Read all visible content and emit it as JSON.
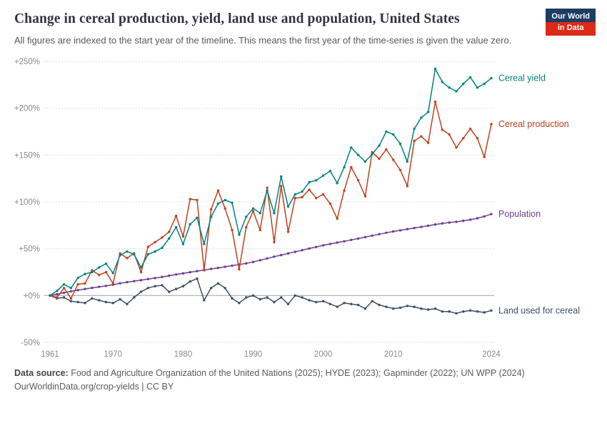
{
  "header": {
    "title": "Change in cereal production, yield, land use and population, United States",
    "subtitle": "All figures are indexed to the start year of the timeline. This means the first year of the time-series is given the value zero.",
    "logo_line1": "Our World",
    "logo_line2": "in Data",
    "logo_colors": {
      "background": "#1d3d63",
      "accent": "#dc2a17"
    }
  },
  "chart_data": {
    "type": "line",
    "title": "Change in cereal production, yield, land use and population, United States",
    "xlabel": "",
    "ylabel": "",
    "xlim": [
      1961,
      2024
    ],
    "ylim": [
      -50,
      250
    ],
    "grid": true,
    "legend_position": "right-end-labels",
    "yticks": [
      -50,
      0,
      50,
      100,
      150,
      200,
      250
    ],
    "ytick_labels": [
      "-50%",
      "+0%",
      "+50%",
      "+100%",
      "+150%",
      "+200%",
      "+250%"
    ],
    "xticks": [
      1961,
      1970,
      1980,
      1990,
      2000,
      2010,
      2024
    ],
    "x": [
      1961,
      1962,
      1963,
      1964,
      1965,
      1966,
      1967,
      1968,
      1969,
      1970,
      1971,
      1972,
      1973,
      1974,
      1975,
      1976,
      1977,
      1978,
      1979,
      1980,
      1981,
      1982,
      1983,
      1984,
      1985,
      1986,
      1987,
      1988,
      1989,
      1990,
      1991,
      1992,
      1993,
      1994,
      1995,
      1996,
      1997,
      1998,
      1999,
      2000,
      2001,
      2002,
      2003,
      2004,
      2005,
      2006,
      2007,
      2008,
      2009,
      2010,
      2011,
      2012,
      2013,
      2014,
      2015,
      2016,
      2017,
      2018,
      2019,
      2020,
      2021,
      2022,
      2023,
      2024
    ],
    "series": [
      {
        "name": "Cereal yield",
        "color": "#00847e",
        "values": [
          0,
          5,
          12,
          8,
          19,
          23,
          25,
          30,
          34,
          24,
          43,
          47,
          44,
          30,
          44,
          47,
          51,
          61,
          73,
          55,
          76,
          83,
          55,
          84,
          98,
          102,
          99,
          65,
          84,
          93,
          88,
          112,
          88,
          127,
          95,
          108,
          111,
          121,
          123,
          128,
          133,
          120,
          137,
          158,
          150,
          143,
          151,
          160,
          175,
          172,
          162,
          143,
          178,
          190,
          196,
          242,
          228,
          222,
          218,
          226,
          233,
          222,
          226,
          232
        ]
      },
      {
        "name": "Cereal production",
        "color": "#c0411f",
        "values": [
          0,
          -2,
          8,
          -3,
          12,
          13,
          27,
          22,
          25,
          13,
          45,
          40,
          45,
          25,
          52,
          57,
          62,
          68,
          85,
          63,
          103,
          102,
          27,
          92,
          112,
          93,
          70,
          28,
          73,
          90,
          70,
          115,
          57,
          117,
          68,
          104,
          105,
          113,
          104,
          108,
          98,
          82,
          112,
          137,
          123,
          106,
          153,
          146,
          156,
          145,
          134,
          117,
          165,
          170,
          163,
          207,
          177,
          172,
          158,
          168,
          178,
          168,
          148,
          183
        ]
      },
      {
        "name": "Population",
        "color": "#6d3e91",
        "values": [
          0,
          1.5,
          3,
          4.5,
          5.8,
          7,
          8.2,
          9.3,
          10.3,
          11.6,
          13.1,
          14.3,
          15.4,
          16.4,
          17.6,
          18.7,
          19.9,
          21.2,
          22.5,
          23.7,
          24.9,
          26.1,
          27.3,
          28.4,
          29.5,
          30.7,
          31.9,
          33.1,
          34.4,
          35.9,
          37.7,
          39.6,
          41.5,
          43.2,
          45,
          46.7,
          48.4,
          50.2,
          51.9,
          53.6,
          55.1,
          56.6,
          57.9,
          59.4,
          60.9,
          62.4,
          64,
          65.5,
          67,
          68.4,
          69.6,
          70.9,
          72.1,
          73.3,
          74.6,
          75.9,
          77,
          77.9,
          78.7,
          79.8,
          81,
          82.5,
          84.5,
          87
        ]
      },
      {
        "name": "Land used for cereal",
        "color": "#3d4e66",
        "values": [
          0,
          -3,
          -2,
          -6,
          -7,
          -8,
          -3,
          -5,
          -7,
          -8,
          -4,
          -9,
          -2,
          4,
          8,
          10,
          11,
          4,
          7,
          10,
          15,
          18,
          -5,
          8,
          13,
          8,
          -3,
          -8,
          -2,
          0,
          -4,
          -2,
          -7,
          -2,
          -9,
          0,
          -2,
          -5,
          -7,
          -6,
          -9,
          -12,
          -8,
          -9,
          -10,
          -14,
          -6,
          -10,
          -12,
          -14,
          -13,
          -11,
          -12,
          -14,
          -15,
          -14,
          -17,
          -17,
          -19,
          -17,
          -16,
          -17,
          -18,
          -16
        ]
      }
    ]
  },
  "footer": {
    "source_label": "Data source:",
    "source_text": "Food and Agriculture Organization of the United Nations (2025); HYDE (2023); Gapminder (2022); UN WPP (2024)",
    "link_text": "OurWorldinData.org/crop-yields | CC BY"
  }
}
